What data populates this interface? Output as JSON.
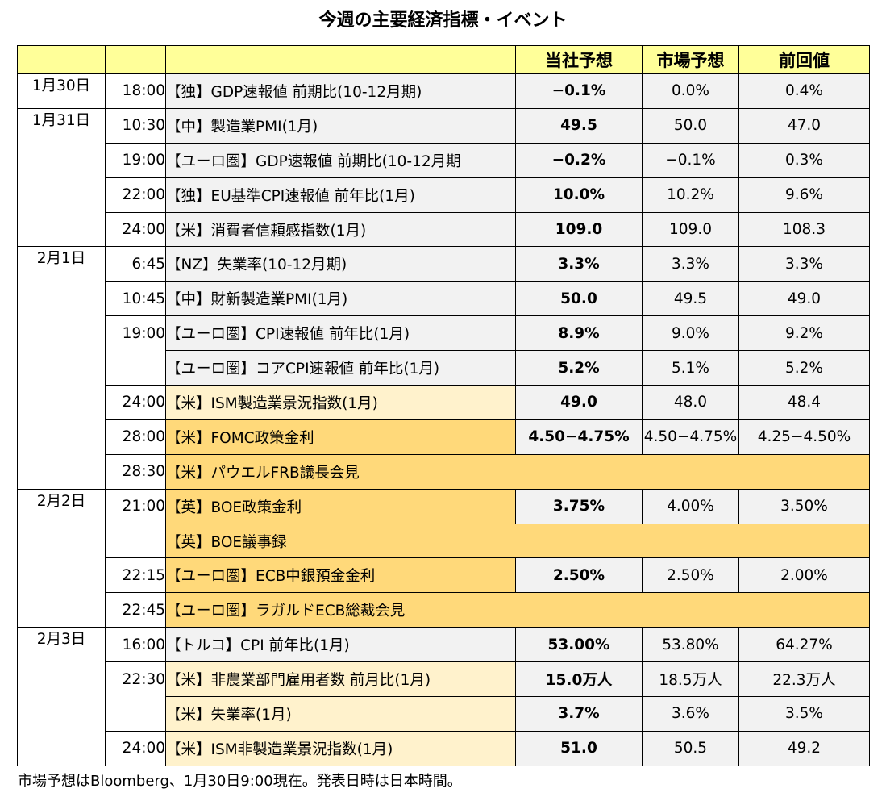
{
  "title": "今週の主要経済指標・イベント",
  "columns": {
    "col_date": "",
    "col_time": "",
    "col_event": "",
    "col_ours": "当社予想",
    "col_market": "市場予想",
    "col_prev": "前回値"
  },
  "rows": [
    {
      "date": "1月30日",
      "time": "18:00",
      "event": "【独】GDP速報値 前期比(10-12月期)",
      "ours": "−0.1%",
      "market": "0.0%",
      "prev": "0.4%"
    },
    {
      "date": "1月31日",
      "time": "10:30",
      "event": "【中】製造業PMI(1月)",
      "ours": "49.5",
      "market": "50.0",
      "prev": "47.0"
    },
    {
      "date": "",
      "time": "19:00",
      "event": "【ユーロ圏】GDP速報値 前期比(10-12月期",
      "ours": "−0.2%",
      "market": "−0.1%",
      "prev": "0.3%"
    },
    {
      "date": "",
      "time": "22:00",
      "event": "【独】EU基準CPI速報値 前年比(1月)",
      "ours": "10.0%",
      "market": "10.2%",
      "prev": "9.6%"
    },
    {
      "date": "",
      "time": "24:00",
      "event": "【米】消費者信頼感指数(1月)",
      "ours": "109.0",
      "market": "109.0",
      "prev": "108.3"
    },
    {
      "date": "2月1日",
      "time": "6:45",
      "event": "【NZ】失業率(10-12月期)",
      "ours": "3.3%",
      "market": "3.3%",
      "prev": "3.3%"
    },
    {
      "date": "",
      "time": "10:45",
      "event": "【中】財新製造業PMI(1月)",
      "ours": "50.0",
      "market": "49.5",
      "prev": "49.0"
    },
    {
      "date": "",
      "time": "19:00",
      "event": "【ユーロ圏】CPI速報値 前年比(1月)",
      "ours": "8.9%",
      "market": "9.0%",
      "prev": "9.2%"
    },
    {
      "date": "",
      "time": "",
      "event": "【ユーロ圏】コアCPI速報値 前年比(1月)",
      "ours": "5.2%",
      "market": "5.1%",
      "prev": "5.2%"
    },
    {
      "date": "",
      "time": "24:00",
      "event": "【米】ISM製造業景況指数(1月)",
      "ours": "49.0",
      "market": "48.0",
      "prev": "48.4"
    },
    {
      "date": "",
      "time": "28:00",
      "event": "【米】FOMC政策金利",
      "ours": "4.50−4.75%",
      "market": "4.50−4.75%",
      "prev": "4.25−4.50%"
    },
    {
      "date": "",
      "time": "28:30",
      "event": "【米】パウエルFRB議長会見",
      "ours": "",
      "market": "",
      "prev": ""
    },
    {
      "date": "2月2日",
      "time": "21:00",
      "event": "【英】BOE政策金利",
      "ours": "3.75%",
      "market": "4.00%",
      "prev": "3.50%"
    },
    {
      "date": "",
      "time": "",
      "event": "【英】BOE議事録",
      "ours": "",
      "market": "",
      "prev": ""
    },
    {
      "date": "",
      "time": "22:15",
      "event": "【ユーロ圏】ECB中銀預金金利",
      "ours": "2.50%",
      "market": "2.50%",
      "prev": "2.00%"
    },
    {
      "date": "",
      "time": "22:45",
      "event": "【ユーロ圏】ラガルドECB総裁会見",
      "ours": "",
      "market": "",
      "prev": ""
    },
    {
      "date": "2月3日",
      "time": "16:00",
      "event": "【トルコ】CPI 前年比(1月)",
      "ours": "53.00%",
      "market": "53.80%",
      "prev": "64.27%"
    },
    {
      "date": "",
      "time": "22:30",
      "event": "【米】非農業部門雇用者数 前月比(1月)",
      "ours": "15.0万人",
      "market": "18.5万人",
      "prev": "22.3万人"
    },
    {
      "date": "",
      "time": "",
      "event": "【米】失業率(1月)",
      "ours": "3.7%",
      "market": "3.6%",
      "prev": "3.5%"
    },
    {
      "date": "",
      "time": "24:00",
      "event": "【米】ISM非製造業景況指数(1月)",
      "ours": "51.0",
      "market": "50.5",
      "prev": "49.2"
    }
  ],
  "colors": {
    "header": "#ffff99",
    "gray_row": "#f2f2f2",
    "cream_row": "#fff2cc",
    "orange_row": "#ffd97a"
  },
  "footer": "市場予想はBloomberg、1月30日9:00現在。発表日時は日本時間。"
}
